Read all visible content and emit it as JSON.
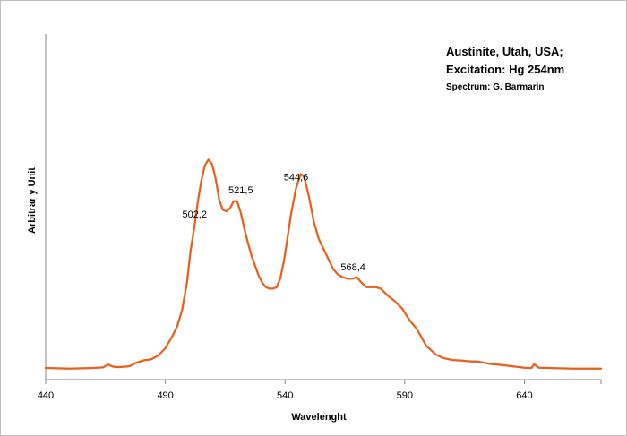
{
  "chart_data": {
    "type": "line",
    "title_lines": [
      "Austinite, Utah, USA;",
      "Excitation:  Hg 254nm"
    ],
    "credit": "Spectrum: G. Barmarin",
    "xlabel": "Wavelenght",
    "ylabel": "Arbitrar y Unit",
    "xlim": [
      440,
      672
    ],
    "ylim": [
      0,
      100
    ],
    "x_ticks": [
      440,
      490,
      540,
      590,
      640
    ],
    "grid": false,
    "series": [
      {
        "color": "#e8601c",
        "x": [
          440,
          445,
          450,
          455,
          460,
          464,
          466,
          468,
          470,
          472,
          475,
          478,
          481,
          484,
          487,
          490,
          493,
          495,
          497,
          499,
          500.5,
          502.2,
          503.5,
          505,
          506.5,
          508,
          509.5,
          511,
          512.5,
          514,
          515.5,
          517,
          518.5,
          520,
          521.5,
          523,
          524.5,
          526,
          527.5,
          529,
          530.5,
          532,
          533.5,
          535,
          536.5,
          538,
          539.5,
          541,
          542.5,
          544.6,
          546.5,
          548,
          550,
          552,
          554,
          556,
          558,
          560,
          562,
          564,
          566,
          568.4,
          570,
          572,
          574,
          576,
          578,
          580,
          583,
          586,
          589,
          592,
          595,
          597,
          599,
          601,
          603,
          606,
          610,
          614,
          618,
          620,
          623,
          626,
          630,
          635,
          640,
          643,
          644,
          646,
          650,
          655,
          660,
          665,
          670,
          672
        ],
        "values": [
          0.3,
          0.2,
          0.1,
          0.2,
          0.3,
          0.5,
          1.5,
          0.8,
          0.6,
          0.7,
          0.9,
          2.2,
          3.0,
          3.3,
          4.7,
          7.2,
          11.5,
          15.0,
          20.5,
          30.0,
          41.0,
          50.0,
          58.0,
          65.5,
          71.0,
          73.0,
          71.5,
          66.5,
          59.0,
          55.5,
          55.0,
          56.0,
          58.5,
          58.5,
          54.5,
          49.0,
          44.0,
          39.5,
          36.0,
          32.5,
          30.0,
          28.5,
          28.0,
          28.0,
          28.5,
          31.5,
          37.5,
          45.5,
          54.0,
          63.0,
          68.0,
          67.0,
          60.0,
          51.5,
          45.5,
          42.0,
          38.5,
          35.0,
          33.0,
          32.0,
          31.5,
          31.5,
          32.0,
          30.0,
          28.5,
          28.5,
          28.5,
          28.0,
          25.5,
          23.5,
          21.0,
          17.0,
          14.0,
          11.0,
          8.0,
          6.5,
          5.0,
          3.8,
          3.1,
          2.9,
          2.6,
          2.6,
          2.2,
          1.7,
          1.4,
          0.9,
          0.4,
          0.3,
          1.6,
          0.4,
          0.3,
          0.2,
          0.1,
          0.1,
          0.1,
          0.1
        ],
        "x_fine": "",
        "note": ""
      }
    ],
    "peak_labels": [
      {
        "x": 502.2,
        "y": 50.0,
        "text": "502,2"
      },
      {
        "x": 521.5,
        "y": 58.5,
        "text": "521,5"
      },
      {
        "x": 544.6,
        "y": 63.0,
        "text": "544,6"
      },
      {
        "x": 568.4,
        "y": 31.5,
        "text": "568,4"
      }
    ]
  }
}
